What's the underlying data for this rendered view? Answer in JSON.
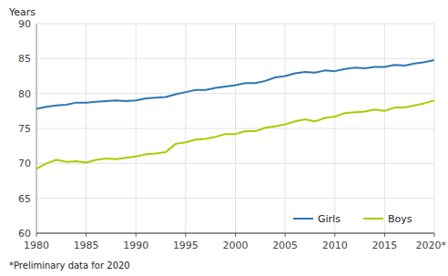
{
  "chart_data": {
    "type": "line",
    "y_label": "Years",
    "footnote": "*Preliminary data for 2020",
    "x": [
      1980,
      1981,
      1982,
      1983,
      1984,
      1985,
      1986,
      1987,
      1988,
      1989,
      1990,
      1991,
      1992,
      1993,
      1994,
      1995,
      1996,
      1997,
      1998,
      1999,
      2000,
      2001,
      2002,
      2003,
      2004,
      2005,
      2006,
      2007,
      2008,
      2009,
      2010,
      2011,
      2012,
      2013,
      2014,
      2015,
      2016,
      2017,
      2018,
      2019,
      2020
    ],
    "series": [
      {
        "name": "Girls",
        "color": "#2E75B6",
        "values": [
          77.8,
          78.1,
          78.3,
          78.4,
          78.7,
          78.7,
          78.8,
          78.9,
          79.0,
          78.9,
          79.0,
          79.3,
          79.4,
          79.5,
          79.9,
          80.2,
          80.5,
          80.5,
          80.8,
          81.0,
          81.2,
          81.5,
          81.5,
          81.8,
          82.3,
          82.5,
          82.9,
          83.1,
          83.0,
          83.3,
          83.2,
          83.5,
          83.7,
          83.6,
          83.8,
          83.8,
          84.1,
          84.0,
          84.3,
          84.5,
          84.8
        ]
      },
      {
        "name": "Boys",
        "color": "#AACC00",
        "values": [
          69.2,
          70.0,
          70.5,
          70.2,
          70.3,
          70.1,
          70.5,
          70.7,
          70.6,
          70.8,
          71.0,
          71.3,
          71.4,
          71.6,
          72.8,
          73.0,
          73.4,
          73.5,
          73.8,
          74.2,
          74.2,
          74.6,
          74.6,
          75.1,
          75.3,
          75.6,
          76.0,
          76.3,
          76.0,
          76.5,
          76.7,
          77.2,
          77.3,
          77.4,
          77.7,
          77.5,
          78.0,
          78.0,
          78.3,
          78.6,
          79.0
        ]
      }
    ],
    "xlim": [
      1980,
      2020
    ],
    "xticks": [
      1980,
      1985,
      1990,
      1995,
      2000,
      2005,
      2010,
      2015,
      {
        "value": 2020,
        "label": "2020*"
      }
    ],
    "ylim": [
      60,
      90
    ],
    "yticks": [
      60,
      65,
      70,
      75,
      80,
      85,
      90
    ],
    "grid": true,
    "legend": "lower right"
  }
}
